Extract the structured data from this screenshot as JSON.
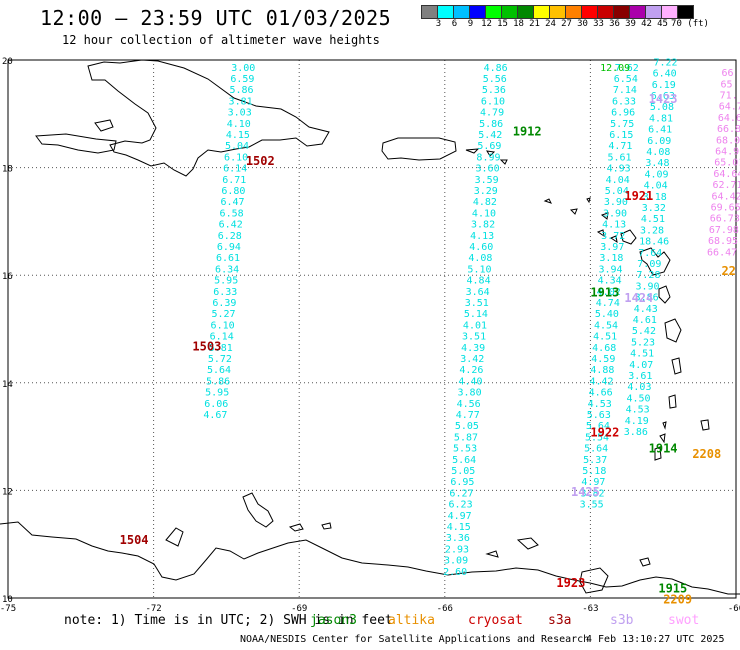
{
  "header": {
    "title": "12:00 – 23:59 UTC 01/03/2025",
    "subtitle": "12 hour collection of altimeter wave heights"
  },
  "legend": {
    "labels": [
      "3",
      "6",
      "9",
      "12",
      "15",
      "18",
      "21",
      "24",
      "27",
      "30",
      "33",
      "36",
      "39",
      "42",
      "45",
      "70 (ft)"
    ],
    "colors": [
      "#808080",
      "#00ffff",
      "#00c0ff",
      "#0000ff",
      "#00ff00",
      "#00c000",
      "#008800",
      "#ffff00",
      "#ffc000",
      "#ff8000",
      "#ff0000",
      "#c80000",
      "#880000",
      "#aa00aa",
      "#c0a0f0",
      "#ffb0ff",
      "#000000"
    ]
  },
  "axes": {
    "lon_labels": [
      "-75",
      "-72",
      "-69",
      "-66",
      "-63",
      "-60"
    ],
    "lat_labels": [
      "20",
      "18",
      "16",
      "14",
      "12",
      "10"
    ]
  },
  "tracks": [
    {
      "color": "#00e0e0",
      "lon": -70.4,
      "lat": 19.8,
      "direction": "south",
      "labels": [
        "3.00",
        "6.59",
        "5.86",
        "3.81",
        "3.03",
        "4.10",
        "4.15",
        "5.04",
        "6.10",
        "6.14",
        "6.71",
        "6.80",
        "6.47",
        "6.58",
        "6.42",
        "6.28",
        "6.94",
        "6.61",
        "6.34",
        "5.95",
        "6.33",
        "6.39",
        "5.27",
        "6.10",
        "6.14",
        "5.81",
        "5.72",
        "5.64",
        "5.86",
        "5.95",
        "6.06",
        "4.67"
      ]
    },
    {
      "color": "#00e0e0",
      "lon": -65.2,
      "lat": 19.8,
      "direction": "south",
      "labels": [
        "4.86",
        "5.56",
        "5.36",
        "6.10",
        "4.79",
        "5.86",
        "5.42",
        "5.69",
        "8.99",
        "3.60",
        "3.59",
        "3.29",
        "4.82",
        "4.10",
        "3.82",
        "4.13",
        "4.60",
        "4.08",
        "5.10",
        "4.84",
        "3.64",
        "3.51",
        "5.14",
        "4.01",
        "3.51",
        "4.39",
        "3.42",
        "4.26",
        "4.40",
        "3.80",
        "4.56",
        "4.77",
        "5.05",
        "5.87",
        "5.53",
        "5.64",
        "5.05",
        "6.95",
        "6.27",
        "6.23",
        "4.97",
        "4.15",
        "3.36",
        "2.93",
        "3.09",
        "2.60"
      ]
    },
    {
      "color": "#00e0e0",
      "lon": -62.5,
      "lat": 19.8,
      "direction": "south",
      "labels": [
        "7.62",
        "6.54",
        "7.14",
        "6.33",
        "6.96",
        "5.75",
        "6.15",
        "4.71",
        "5.61",
        "4.93",
        "4.04",
        "5.04",
        "3.90",
        "3.90",
        "4.13",
        "3.72",
        "3.97",
        "3.18",
        "3.94",
        "4.34",
        "4.02",
        "4.74",
        "5.40",
        "4.54",
        "4.51",
        "4.68",
        "4.59",
        "4.88",
        "4.42",
        "4.66",
        "4.53",
        "5.63",
        "5.64",
        "5.54",
        "5.64",
        "5.37",
        "5.18",
        "4.97",
        "3.82",
        "3.55"
      ]
    },
    {
      "color": "#00e0e0",
      "lon": -61.7,
      "lat": 19.9,
      "direction": "south",
      "labels": [
        "7.22",
        "6.40",
        "6.19",
        "6.63",
        "5.08",
        "4.81",
        "6.41",
        "6.09",
        "4.08",
        "3.48",
        "4.09",
        "4.04",
        "3.18",
        "3.32",
        "4.51",
        "3.28",
        "18.46",
        "7.64",
        "7.09",
        "7.28",
        "3.90",
        "3.86",
        "4.43",
        "4.61",
        "5.42",
        "5.23",
        "4.51",
        "4.07",
        "3.61",
        "4.03",
        "4.50",
        "4.53",
        "4.19",
        "3.86"
      ]
    },
    {
      "color": "#ee82ee",
      "lon": -60.3,
      "lat": 19.7,
      "direction": "south",
      "labels": [
        "66",
        "65",
        "71.",
        "64.7",
        "64.6",
        "66.8",
        "68.09",
        "64.96",
        "65.01",
        "64.64",
        "62.71",
        "64.42",
        "69.65",
        "66.73",
        "67.98",
        "68.95",
        "66.47"
      ]
    }
  ],
  "track_ids": [
    {
      "text": "1502",
      "color": "#a00000"
    },
    {
      "text": "1503",
      "color": "#a00000"
    },
    {
      "text": "1504",
      "color": "#a00000"
    },
    {
      "text": "1912",
      "color": "#008800"
    },
    {
      "text": "1913",
      "color": "#008800"
    },
    {
      "text": "1914",
      "color": "#008800"
    },
    {
      "text": "1915",
      "color": "#008800"
    },
    {
      "text": "1921",
      "color": "#cc0000"
    },
    {
      "text": "1922",
      "color": "#cc0000"
    },
    {
      "text": "1923",
      "color": "#cc0000"
    },
    {
      "text": "1423",
      "color": "#c0a0f0"
    },
    {
      "text": "1424",
      "color": "#c0a0f0"
    },
    {
      "text": "1425",
      "color": "#c0a0f0"
    },
    {
      "text": "2208",
      "color": "#e89000"
    },
    {
      "text": "2209",
      "color": "#e89000"
    },
    {
      "text": "22",
      "color": "#e89000"
    }
  ],
  "misc_labels": [
    {
      "text": "12.09",
      "color": "#00c000"
    }
  ],
  "footer": {
    "note": "note: 1) Time is in UTC; 2) SWH is in feet",
    "sat_legend": [
      {
        "text": "jason3",
        "color": "#008800"
      },
      {
        "text": "altika",
        "color": "#e89000"
      },
      {
        "text": "cryosat",
        "color": "#cc0000"
      },
      {
        "text": "s3a",
        "color": "#a00000"
      },
      {
        "text": "s3b",
        "color": "#c0a0f0"
      },
      {
        "text": "swot",
        "color": "#ffa0ff"
      }
    ],
    "credit": "NOAA/NESDIS Center for Satellite Applications and Research",
    "timestamp": "4 Feb 13:10:27 UTC 2025"
  }
}
